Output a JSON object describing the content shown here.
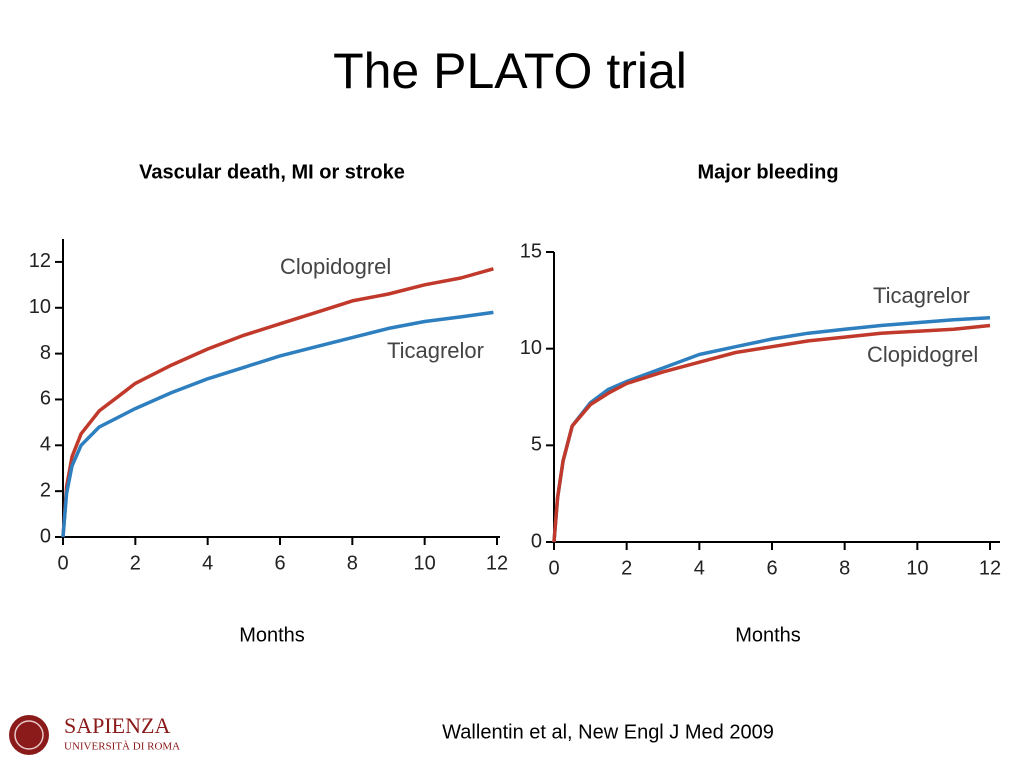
{
  "title": "The PLATO trial",
  "chart_data": [
    {
      "type": "line",
      "title": "Vascular death, MI or stroke",
      "x_label": "Months",
      "xlim": [
        0,
        12
      ],
      "xticks": [
        0,
        2,
        4,
        6,
        8,
        10,
        12
      ],
      "ylim": [
        0,
        13
      ],
      "yticks": [
        0,
        2,
        4,
        6,
        8,
        10,
        12
      ],
      "x": [
        0,
        0.1,
        0.25,
        0.5,
        1,
        1.5,
        2,
        3,
        4,
        5,
        6,
        7,
        8,
        9,
        10,
        11,
        11.9
      ],
      "series": [
        {
          "name": "Clopidogrel",
          "color": "#c0392b",
          "values": [
            0,
            2.2,
            3.5,
            4.5,
            5.5,
            6.1,
            6.7,
            7.5,
            8.2,
            8.8,
            9.3,
            9.8,
            10.3,
            10.6,
            11.0,
            11.3,
            11.7
          ]
        },
        {
          "name": "Ticagrelor",
          "color": "#2e7fbf",
          "values": [
            0,
            1.9,
            3.1,
            4.0,
            4.8,
            5.2,
            5.6,
            6.3,
            6.9,
            7.4,
            7.9,
            8.3,
            8.7,
            9.1,
            9.4,
            9.6,
            9.8
          ]
        }
      ]
    },
    {
      "type": "line",
      "title": "Major bleeding",
      "x_label": "Months",
      "xlim": [
        0,
        12
      ],
      "xticks": [
        0,
        2,
        4,
        6,
        8,
        10,
        12
      ],
      "ylim": [
        0,
        15
      ],
      "yticks": [
        0,
        5,
        10,
        15
      ],
      "x": [
        0,
        0.1,
        0.25,
        0.5,
        1,
        1.5,
        2,
        3,
        4,
        5,
        6,
        7,
        8,
        9,
        10,
        11,
        12
      ],
      "series": [
        {
          "name": "Ticagrelor",
          "color": "#2e7fbf",
          "values": [
            0,
            2.3,
            4.2,
            6.0,
            7.2,
            7.9,
            8.3,
            9.0,
            9.7,
            10.1,
            10.5,
            10.8,
            11.0,
            11.2,
            11.35,
            11.5,
            11.6
          ]
        },
        {
          "name": "Clopidogrel",
          "color": "#c0392b",
          "values": [
            0,
            2.3,
            4.2,
            6.0,
            7.1,
            7.7,
            8.2,
            8.8,
            9.3,
            9.8,
            10.1,
            10.4,
            10.6,
            10.8,
            10.9,
            11.0,
            11.2
          ]
        }
      ]
    }
  ],
  "source": "Wallentin et al, New Engl J Med 2009",
  "logo": {
    "name": "SAPIENZA",
    "subtitle": "UNIVERSITÀ DI ROMA"
  }
}
